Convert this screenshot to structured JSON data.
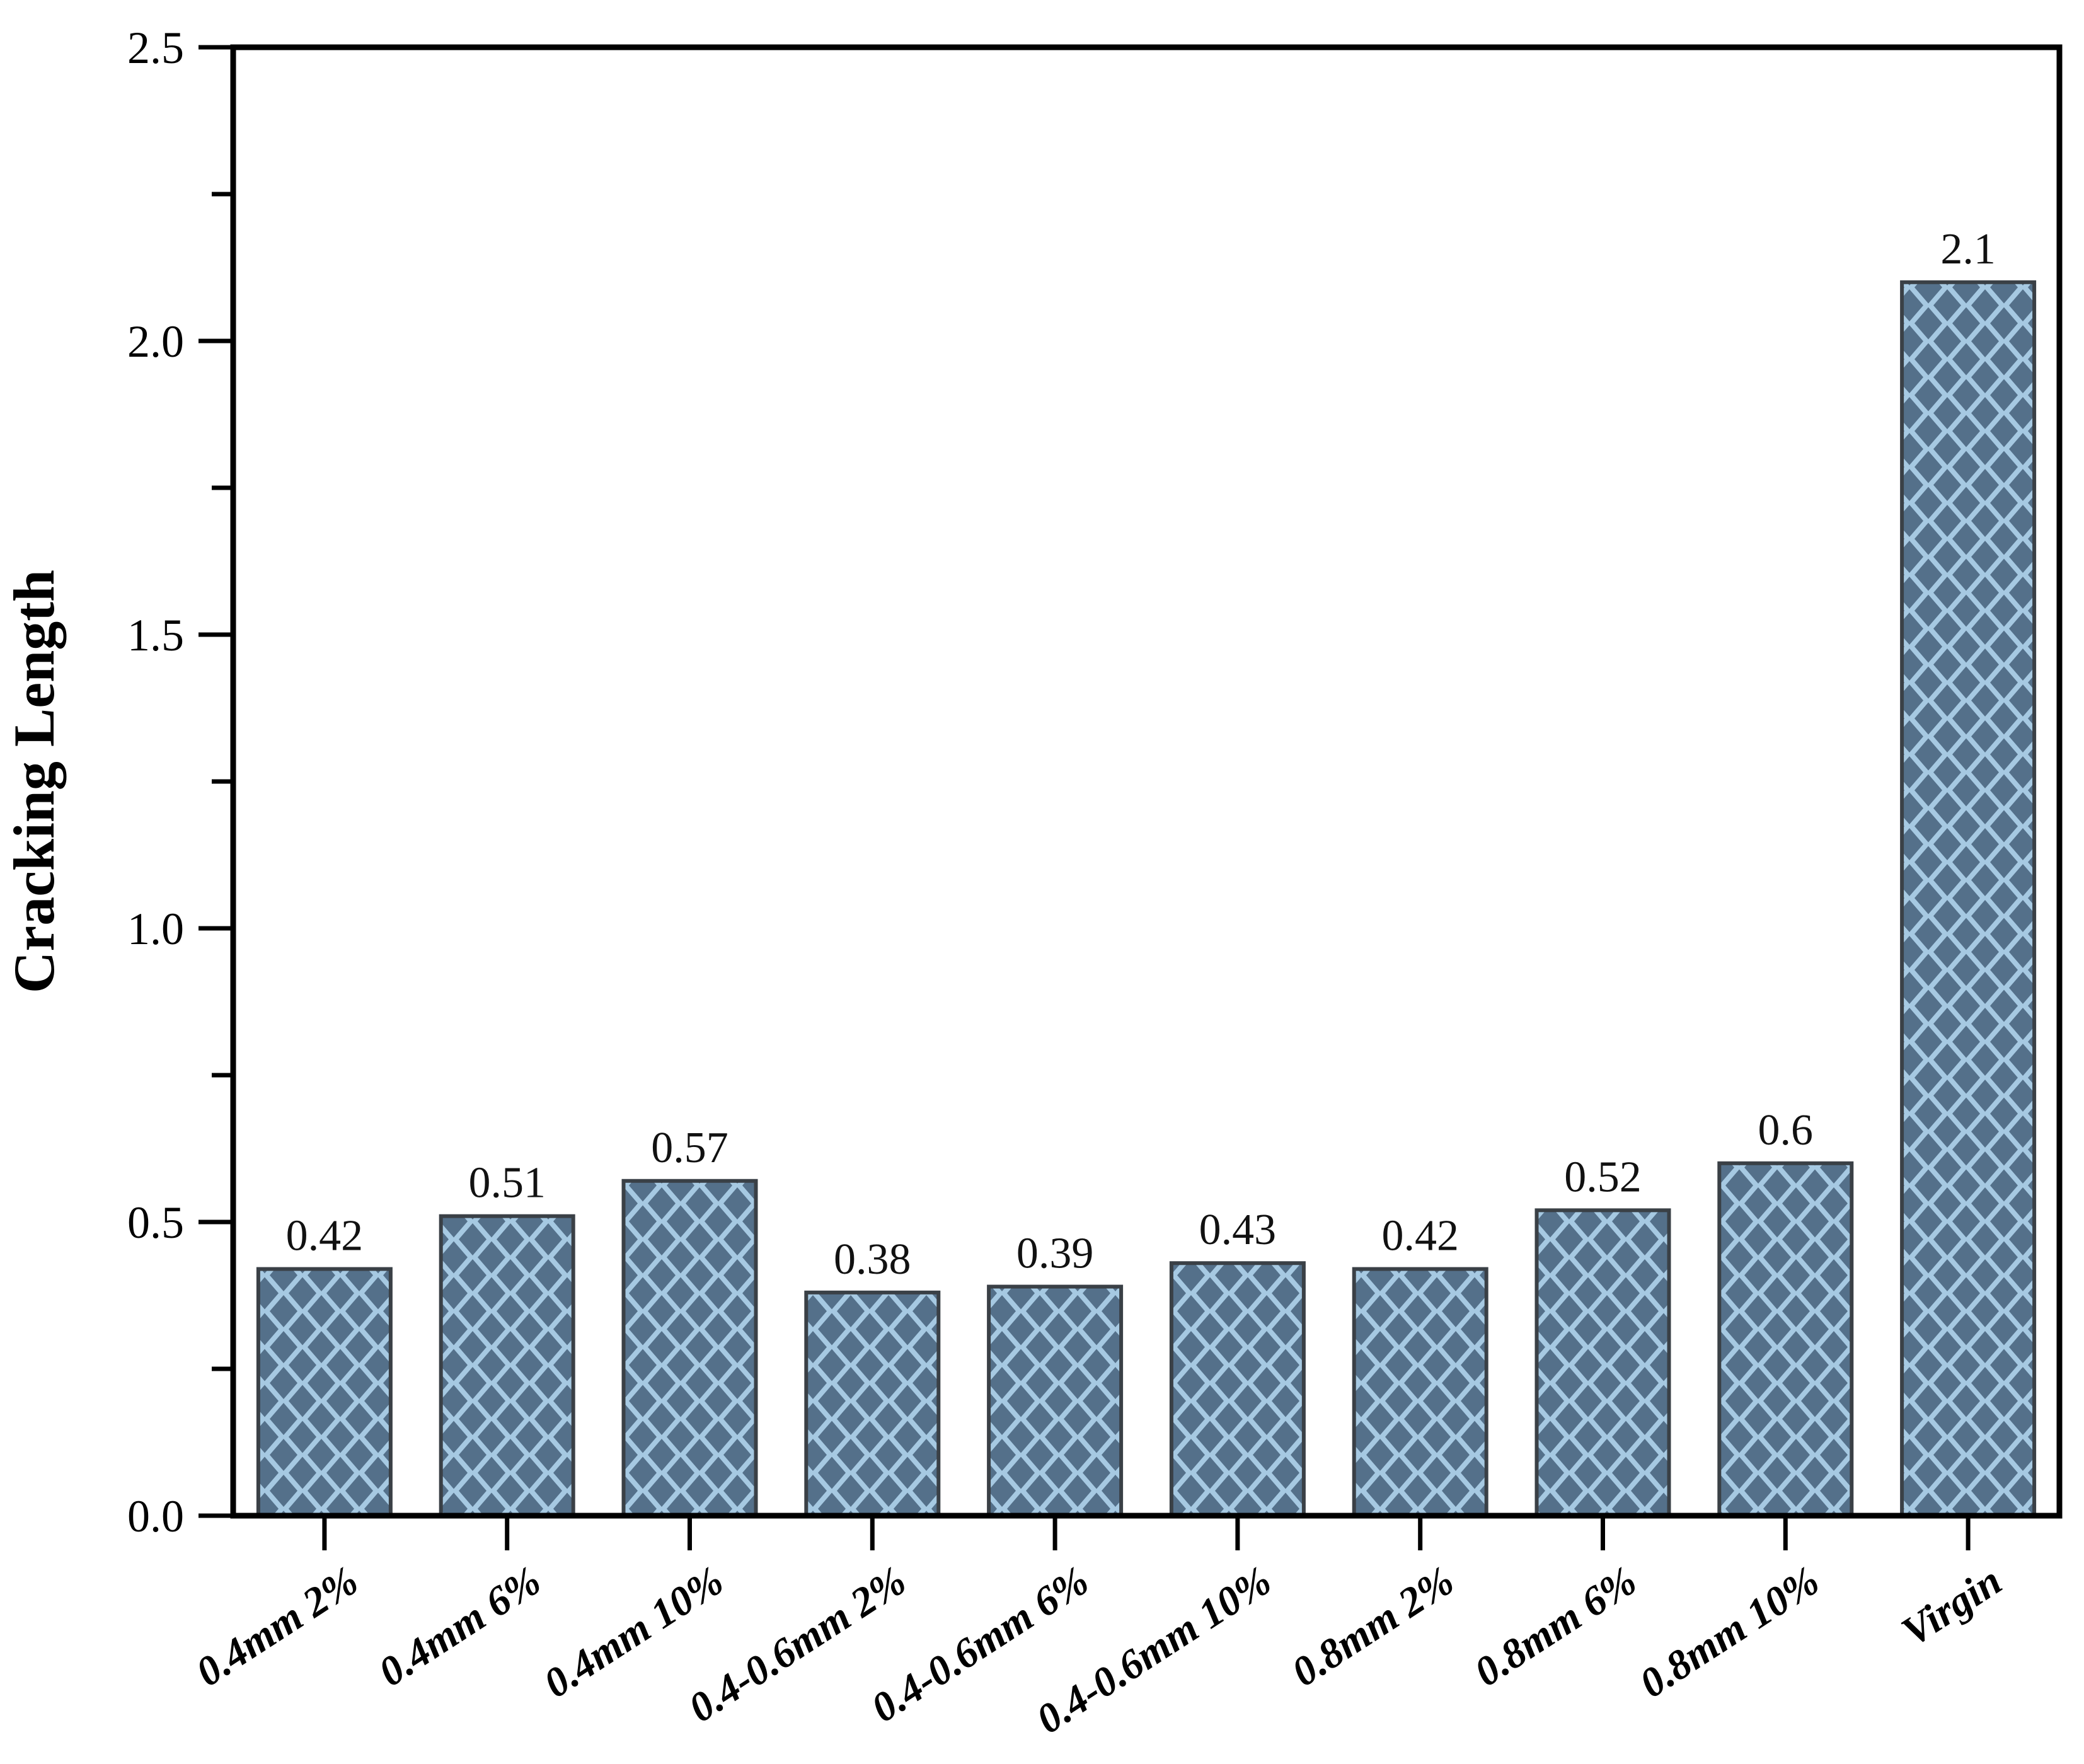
{
  "chart_data": {
    "type": "bar",
    "title": "",
    "xlabel": "",
    "ylabel": "Cracking Length",
    "categories": [
      "0.4mm 2%",
      "0.4mm 6%",
      "0.4mm 10%",
      "0.4-0.6mm 2%",
      "0.4-0.6mm 6%",
      "0.4-0.6mm 10%",
      "0.8mm 2%",
      "0.8mm 6%",
      "0.8mm 10%",
      "Virgin"
    ],
    "values": [
      0.42,
      0.51,
      0.57,
      0.38,
      0.39,
      0.43,
      0.42,
      0.52,
      0.6,
      2.1
    ],
    "value_labels": [
      "0.42",
      "0.51",
      "0.57",
      "0.38",
      "0.39",
      "0.43",
      "0.42",
      "0.52",
      "0.6",
      "2.1"
    ],
    "ylim": [
      0,
      2.5
    ],
    "ytick_major_interval": 0.5,
    "ytick_minor_interval": 0.25,
    "ytick_labels": [
      "0.0",
      "0.5",
      "1.0",
      "1.5",
      "2.0",
      "2.5"
    ],
    "xtick_label_rotation_deg": -33,
    "grid": false,
    "legend": null,
    "bar_pattern": "diamond-hatch",
    "colors": {
      "bar_fill": "#a6c9e2",
      "bar_hatch": "#54708a",
      "bar_edge": "#3a4046",
      "axis": "#000000",
      "text": "#000000",
      "background": "#ffffff"
    }
  }
}
